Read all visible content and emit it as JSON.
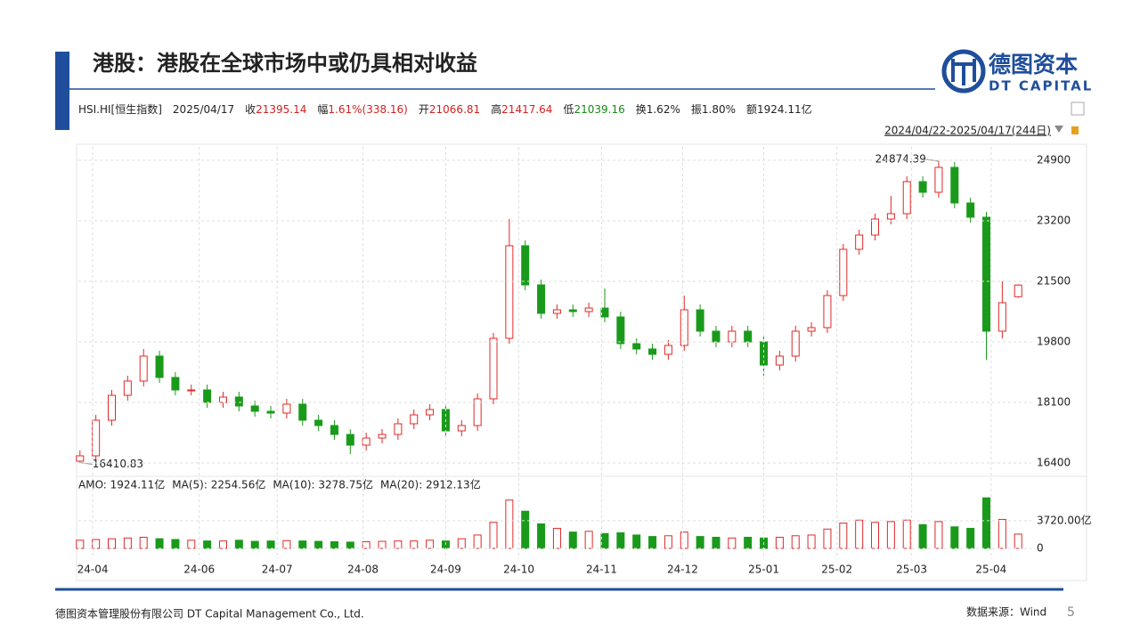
{
  "header": {
    "title": "港股：港股在全球市场中或仍具相对收益",
    "logo_cn": "德图资本",
    "logo_en": "DT CAPITAL",
    "info": [
      {
        "label": "HSI.HI[恒生指数]",
        "value": "",
        "color": "#222"
      },
      {
        "label": "2025/04/17",
        "value": "",
        "color": "#222"
      },
      {
        "label": "收",
        "value": "21395.14",
        "color": "#d42020"
      },
      {
        "label": "幅",
        "value": "1.61%(338.16)",
        "color": "#d42020"
      },
      {
        "label": "开",
        "value": "21066.81",
        "color": "#d42020"
      },
      {
        "label": "高",
        "value": "21417.64",
        "color": "#d42020"
      },
      {
        "label": "低",
        "value": "21039.16",
        "color": "#178a17"
      },
      {
        "label": "换",
        "value": "1.62%",
        "color": "#222"
      },
      {
        "label": "振",
        "value": "1.80%",
        "color": "#222"
      },
      {
        "label": "额",
        "value": "1924.11亿",
        "color": "#222"
      }
    ],
    "range": "2024/04/22-2025/04/17(244日)"
  },
  "chart_data": {
    "type": "candlestick",
    "up_color": "#e02828",
    "down_color": "#1a9a1a",
    "open": [
      16450,
      16600,
      17600,
      18300,
      18700,
      19400,
      18800,
      18450,
      18450,
      18100,
      18250,
      18000,
      17850,
      17800,
      18050,
      17600,
      17450,
      17200,
      16900,
      17100,
      17200,
      17500,
      17750,
      17900,
      17300,
      17450,
      18200,
      19900,
      22500,
      21400,
      20600,
      20700,
      20650,
      20750,
      20500,
      19750,
      19600,
      19450,
      19700,
      20700,
      20100,
      19800,
      20100,
      19800,
      19150,
      19400,
      20100,
      20200,
      21100,
      22400,
      22800,
      23250,
      23400,
      24300,
      24000,
      24700,
      23700,
      23300,
      20100,
      21066.81
    ],
    "high": [
      16750,
      17750,
      18450,
      18850,
      19600,
      19550,
      18950,
      18600,
      18600,
      18400,
      18400,
      18150,
      18000,
      18200,
      18200,
      17750,
      17600,
      17350,
      17250,
      17350,
      17650,
      17900,
      18050,
      18050,
      17600,
      18350,
      20050,
      23250,
      22650,
      21550,
      20850,
      20850,
      20900,
      21300,
      20650,
      19900,
      19750,
      19850,
      21100,
      20850,
      20250,
      20250,
      20250,
      19950,
      19550,
      20250,
      20350,
      21250,
      22550,
      22950,
      23400,
      23900,
      24450,
      24450,
      24874.39,
      24850,
      23850,
      23450,
      21500,
      21417.64
    ],
    "low": [
      16410.83,
      16450,
      17450,
      18150,
      18550,
      18650,
      18300,
      18300,
      17950,
      17950,
      17850,
      17700,
      17650,
      17650,
      17450,
      17300,
      17050,
      16650,
      16750,
      16950,
      17050,
      17350,
      17600,
      17150,
      17150,
      17300,
      18050,
      19750,
      21250,
      20450,
      20450,
      20500,
      20500,
      20350,
      19600,
      19450,
      19300,
      19300,
      19550,
      19950,
      19650,
      19650,
      19650,
      18850,
      19000,
      19250,
      19950,
      20050,
      20950,
      22250,
      22650,
      23100,
      23250,
      23850,
      23850,
      23550,
      23150,
      19300,
      19900,
      21039.16
    ],
    "close": [
      16600,
      17600,
      18300,
      18700,
      19400,
      18800,
      18450,
      18450,
      18100,
      18250,
      18000,
      17850,
      17800,
      18050,
      17600,
      17450,
      17200,
      16900,
      17100,
      17200,
      17500,
      17750,
      17900,
      17300,
      17450,
      18200,
      19900,
      22500,
      21400,
      20600,
      20700,
      20650,
      20750,
      20500,
      19750,
      19600,
      19450,
      19700,
      20700,
      20100,
      19800,
      20100,
      19800,
      19150,
      19400,
      20100,
      20200,
      21100,
      22400,
      22800,
      23250,
      23400,
      24300,
      24000,
      24700,
      23700,
      23300,
      20100,
      20900,
      21395.14
    ],
    "ylim": [
      16100,
      25200
    ],
    "yticks": [
      16400,
      18100,
      19800,
      21500,
      23200,
      24900
    ],
    "grid": true,
    "xlim": [
      -0.1,
      59.1
    ],
    "xticks": [
      {
        "value": 0.8,
        "label": "24-04"
      },
      {
        "value": 7.5,
        "label": "24-06"
      },
      {
        "value": 12.4,
        "label": "24-07"
      },
      {
        "value": 17.8,
        "label": "24-08"
      },
      {
        "value": 23,
        "label": "24-09"
      },
      {
        "value": 27.6,
        "label": "24-10"
      },
      {
        "value": 32.8,
        "label": "24-11"
      },
      {
        "value": 37.9,
        "label": "24-12"
      },
      {
        "value": 43,
        "label": "25-01"
      },
      {
        "value": 47.6,
        "label": "25-02"
      },
      {
        "value": 52.3,
        "label": "25-03"
      },
      {
        "value": 57.3,
        "label": "25-04"
      }
    ],
    "volume": {
      "values": [
        1100,
        1200,
        1300,
        1400,
        1500,
        1300,
        1200,
        1100,
        1000,
        1000,
        1100,
        950,
        1000,
        1050,
        1000,
        950,
        900,
        850,
        900,
        950,
        1000,
        1000,
        1100,
        1000,
        1300,
        1800,
        3500,
        6500,
        5000,
        3300,
        2700,
        2200,
        2300,
        2000,
        2100,
        1800,
        1600,
        1700,
        2200,
        1600,
        1500,
        1400,
        1500,
        1400,
        1500,
        1700,
        1800,
        2600,
        3400,
        3800,
        3500,
        3600,
        3800,
        3200,
        3600,
        2900,
        2700,
        6800,
        3900,
        1924.11
      ],
      "ylim": [
        0,
        7300
      ],
      "yticks": [
        0,
        {
          "value": 3720,
          "label": "3720.00亿"
        }
      ],
      "legend": [
        {
          "text": "AMO: 1924.11亿",
          "color": "#222"
        },
        {
          "text": "MA(5): 2254.56亿",
          "color": "#222"
        },
        {
          "text": "MA(10): 3278.75亿",
          "color": "#d42020"
        },
        {
          "text": "MA(20): 2912.13亿",
          "color": "#2040c0"
        }
      ]
    }
  },
  "footer": {
    "company": "德图资本管理股份有限公司 DT Capital Management Co., Ltd.",
    "source": "数据来源：Wind",
    "page": "5"
  }
}
